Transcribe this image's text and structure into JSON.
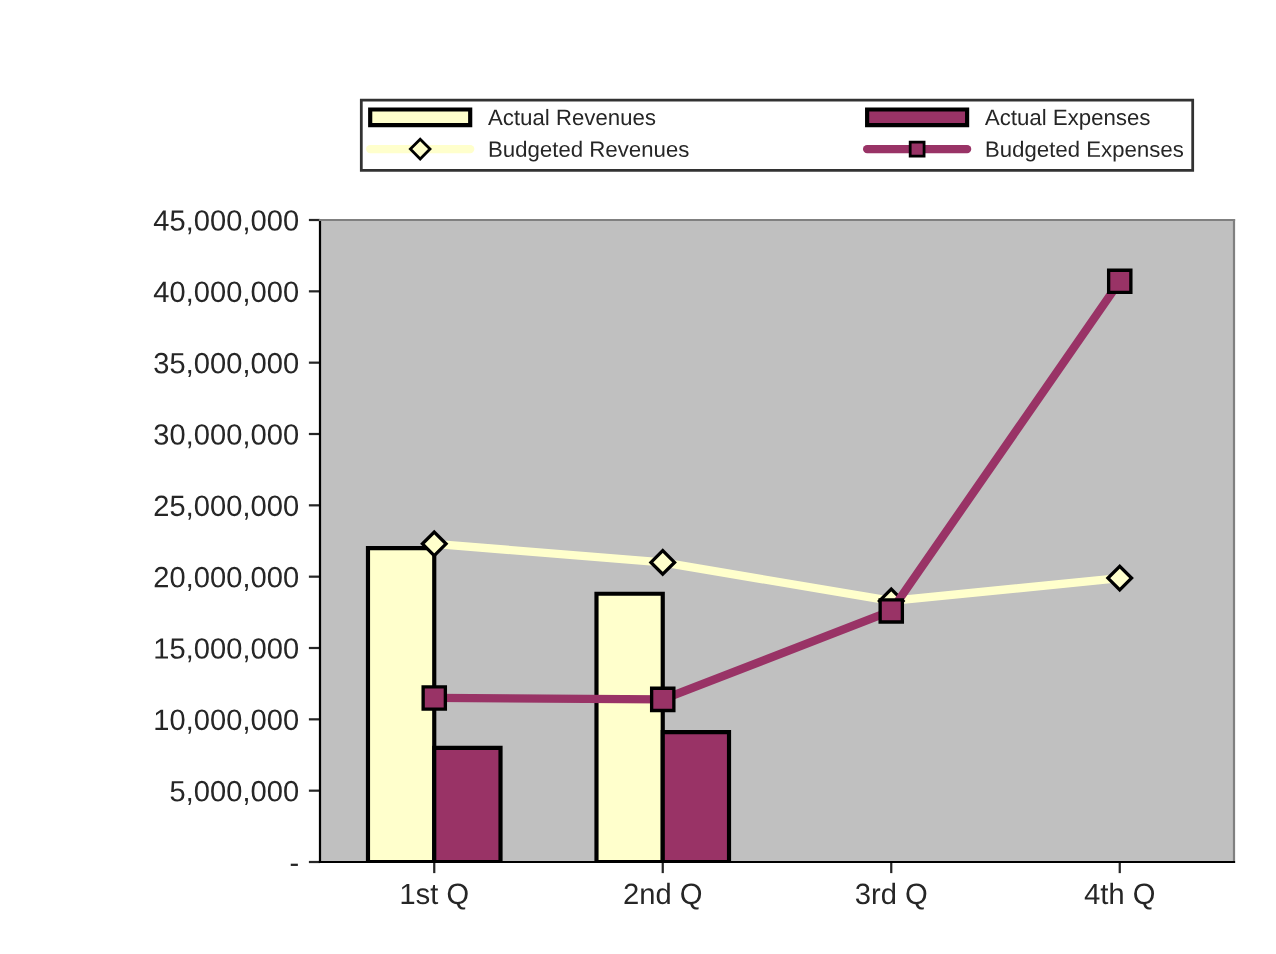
{
  "chart_data": {
    "type": "bar",
    "categories": [
      "1st Q",
      "2nd Q",
      "3rd Q",
      "4th Q"
    ],
    "series": [
      {
        "name": "Actual Revenues",
        "color": "#ffffcc",
        "values": [
          22000000.0,
          18800000.0,
          null,
          null
        ]
      },
      {
        "name": "Actual Expenses",
        "color": "#993366",
        "values": [
          8000000.0,
          9100000.0,
          null,
          null
        ]
      },
      {
        "name": "Budgeted Revenues",
        "type": "line",
        "color": "#ffffcc",
        "marker": "diamond",
        "values": [
          22300000.0,
          21000000.0,
          18300000.0,
          19900000.0
        ]
      },
      {
        "name": "Budgeted Expenses",
        "type": "line",
        "color": "#993366",
        "marker": "square",
        "values": [
          11500000.0,
          11400000.0,
          17600000.0,
          40700000.0
        ]
      }
    ],
    "ylim": [
      0,
      45000000
    ],
    "yticks": [
      {
        "value": 0,
        "label": "-"
      },
      {
        "value": 5000000,
        "label": "5,000,000"
      },
      {
        "value": 10000000,
        "label": "10,000,000"
      },
      {
        "value": 15000000,
        "label": "15,000,000"
      },
      {
        "value": 20000000,
        "label": "20,000,000"
      },
      {
        "value": 25000000,
        "label": "25,000,000"
      },
      {
        "value": 30000000,
        "label": "30,000,000"
      },
      {
        "value": 35000000,
        "label": "35,000,000"
      },
      {
        "value": 40000000,
        "label": "40,000,000"
      },
      {
        "value": 45000000,
        "label": "45,000,000"
      }
    ],
    "grid": false,
    "legend": "top"
  }
}
